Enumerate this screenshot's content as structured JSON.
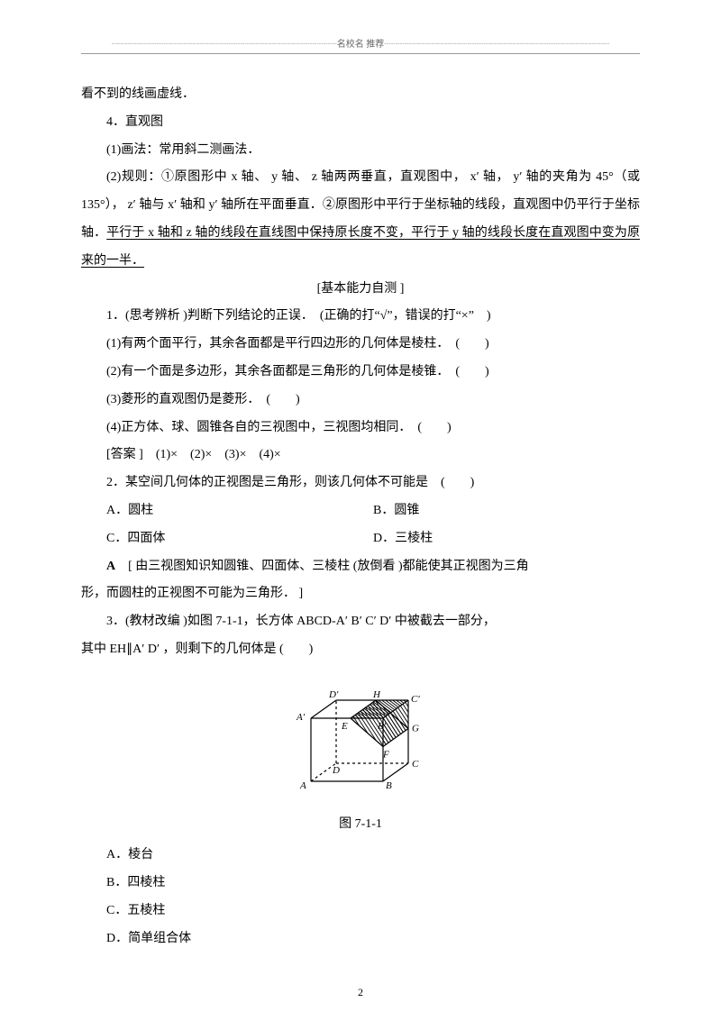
{
  "header": {
    "text": "名校名 推荐"
  },
  "paragraphs": {
    "p0": "看不到的线画虚线．",
    "p1": "4．直观图",
    "p2": "(1)画法：常用斜二测画法．",
    "p3a": "(2)规则：①原图形中 x 轴、 y 轴、 z 轴两两垂直，直观图中， x′ 轴， y′ 轴的夹角为 45°（或 135°）， z′ 轴与 x′ 轴和 y′ 轴所在平面垂直．②原图形中平行于坐标轴的线段，直观图中仍平行于坐标轴．",
    "p3b": "平行于 x 轴和 z 轴的线段在直线图中保持原长度不变，平行于 y 轴的线段长度在直观图中变为原来的一半．",
    "sectionTitle": "[基本能力自测 ]",
    "q1": "1．(思考辨析 )判断下列结论的正误．　(正确的打“√”，错误的打“×”　)",
    "q1_1": "(1)有两个面平行，其余各面都是平行四边形的几何体是棱柱．　(　　)",
    "q1_2": "(2)有一个面是多边形，其余各面都是三角形的几何体是棱锥．　(　　)",
    "q1_3": "(3)菱形的直观图仍是菱形．　(　　)",
    "q1_4": "(4)正方体、球、圆锥各自的三视图中，三视图均相同．　(　　)",
    "q1_ans": "[答案 ]　(1)×　(2)×　(3)×　(4)×",
    "q2": "2．某空间几何体的正视图是三角形，则该几何体不可能是　(　　)",
    "q2A": "A．圆柱",
    "q2B": "B．圆锥",
    "q2C": "C．四面体",
    "q2D": "D．三棱柱",
    "q2_ans": "A　[ 由三视图知识知圆锥、四面体、三棱柱 (放倒看 )都能使其正视图为三角形，而圆柱的正视图不可能为三角形． ]",
    "q3": "3．(教材改编 )如图 7-1-1，长方体  ABCD-A′ B′ C′ D′ 中被截去一部分，其中 EH∥A′ D′ ，则剩下的几何体是 (　　)",
    "figCaption": "图 7-1-1",
    "q3A": "A．棱台",
    "q3B": "B．四棱柱",
    "q3C": "C．五棱柱",
    "q3D": "D．简单组合体"
  },
  "figure": {
    "labels": {
      "A": "A",
      "B": "B",
      "C": "C",
      "D": "D",
      "Ap": "A′",
      "Bp": "B′",
      "Cp": "C′",
      "Dp": "D′",
      "E": "E",
      "F": "F",
      "G": "G",
      "H": "H"
    },
    "style": {
      "stroke": "#000000",
      "strokeWidth": 1.2,
      "hatchStroke": "#000000",
      "hatchWidth": 0.9,
      "fontSize": 11,
      "fontStyle": "italic",
      "fontFamily": "Times New Roman, serif",
      "width": 170,
      "height": 140
    }
  },
  "pageNumber": "2"
}
